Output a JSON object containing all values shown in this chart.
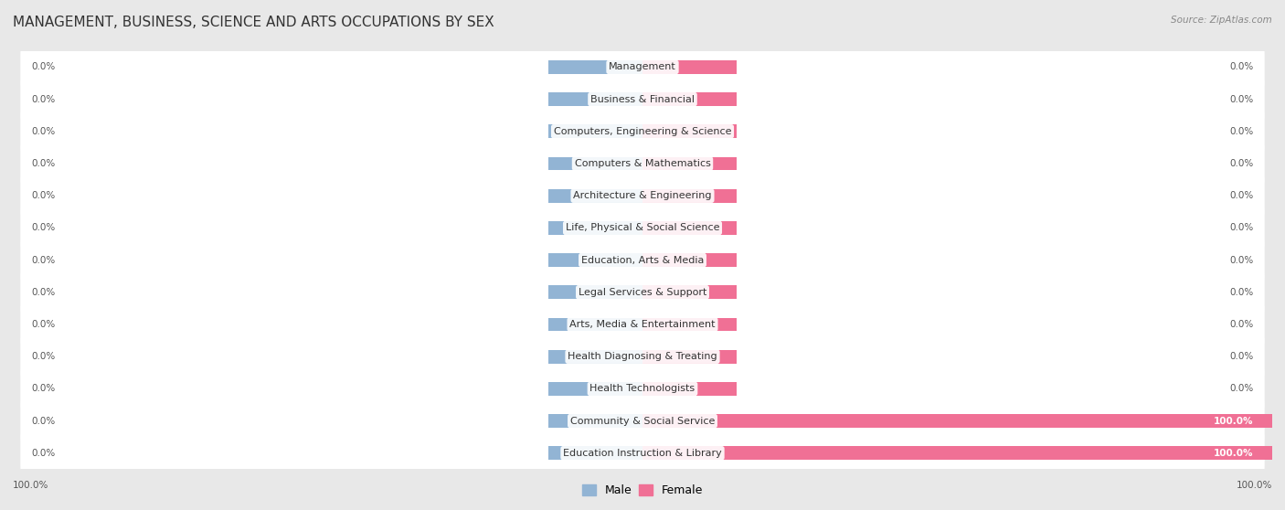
{
  "title": "MANAGEMENT, BUSINESS, SCIENCE AND ARTS OCCUPATIONS BY SEX",
  "source": "Source: ZipAtlas.com",
  "categories": [
    "Management",
    "Business & Financial",
    "Computers, Engineering & Science",
    "Computers & Mathematics",
    "Architecture & Engineering",
    "Life, Physical & Social Science",
    "Education, Arts & Media",
    "Legal Services & Support",
    "Arts, Media & Entertainment",
    "Health Diagnosing & Treating",
    "Health Technologists",
    "Community & Social Service",
    "Education Instruction & Library"
  ],
  "male_values": [
    0.0,
    0.0,
    0.0,
    0.0,
    0.0,
    0.0,
    0.0,
    0.0,
    0.0,
    0.0,
    0.0,
    0.0,
    0.0
  ],
  "female_values": [
    0.0,
    0.0,
    0.0,
    0.0,
    0.0,
    0.0,
    0.0,
    0.0,
    0.0,
    0.0,
    0.0,
    100.0,
    100.0
  ],
  "male_color": "#92b4d4",
  "female_color": "#f07095",
  "male_label": "Male",
  "female_label": "Female",
  "background_color": "#e8e8e8",
  "row_bg_color": "#ffffff",
  "xlim": 100.0,
  "stub_size": 15.0,
  "title_fontsize": 11,
  "label_fontsize": 8.0,
  "tick_fontsize": 7.5,
  "source_fontsize": 7.5,
  "value_label_color": "#555555",
  "value_label_color_on_bar": "#ffffff"
}
